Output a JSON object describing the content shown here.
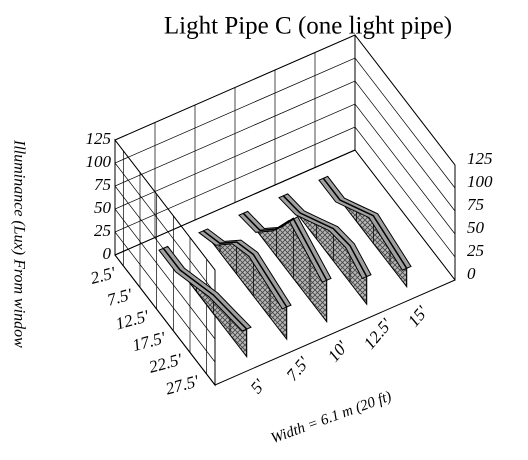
{
  "chart_data": {
    "type": "ribbon3d",
    "title": "Light Pipe C (one light pipe)",
    "zlabel": "Illuminance (Lux) From window",
    "xlabel": "Width = 6.1 m (20 ft)",
    "depth_categories": [
      "2.5'",
      "7.5'",
      "12.5'",
      "17.5'",
      "22.5'",
      "27.5'"
    ],
    "zlim": [
      0,
      125
    ],
    "zticks": [
      0,
      25,
      50,
      75,
      100,
      125
    ],
    "color": "#a0a0a0",
    "grid": true,
    "series": [
      {
        "name": "5'",
        "values": [
          0,
          0,
          10,
          20,
          25,
          30
        ]
      },
      {
        "name": "7.5'",
        "values": [
          0,
          10,
          35,
          45,
          40,
          35
        ]
      },
      {
        "name": "10'",
        "values": [
          0,
          5,
          30,
          65,
          55,
          45
        ]
      },
      {
        "name": "12.5'",
        "values": [
          0,
          5,
          20,
          35,
          40,
          30
        ]
      },
      {
        "name": "15'",
        "values": [
          0,
          0,
          15,
          30,
          25,
          20
        ]
      }
    ]
  }
}
